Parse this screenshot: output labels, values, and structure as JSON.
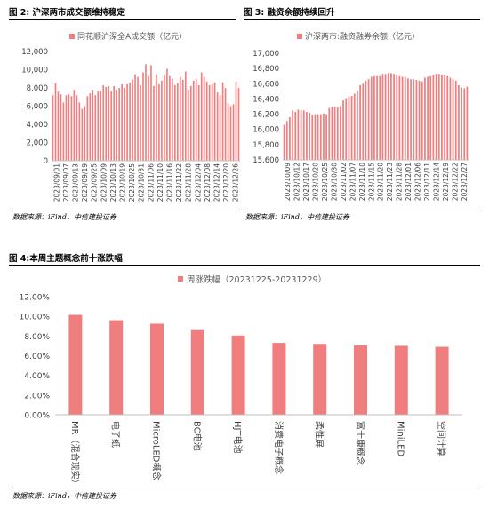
{
  "titles": {
    "fig2": "图 2: 沪深两市成交额维持稳定",
    "fig3": "图 3: 融资余额持续回升",
    "fig4": "图 4:本周主题概念前十涨跌幅"
  },
  "sources": {
    "fig2": "数据来源：iFind，中信建投证券",
    "fig3": "数据来源：iFind，中信建投证券",
    "fig4": "数据来源：iFind，中信建投证券"
  },
  "colors": {
    "bar": "#f07e7e",
    "axis": "#bfbfbf",
    "text": "#595959"
  },
  "chart_data": [
    {
      "type": "bar",
      "title": "",
      "xlabel": "",
      "ylabel": "",
      "legend": "top-center",
      "grid": false,
      "series": [
        {
          "name": "同花顺沪深全A成交额（亿元）",
          "values": [
            7200,
            8500,
            7600,
            7300,
            6400,
            7200,
            7300,
            7100,
            7800,
            7200,
            6400,
            5700,
            6000,
            7100,
            7400,
            7800,
            7200,
            7600,
            7700,
            8300,
            8100,
            8200,
            7600,
            8200,
            7800,
            8000,
            8400,
            8000,
            8400,
            8600,
            8900,
            9500,
            9200,
            8300,
            9700,
            10600,
            9300,
            10500,
            8200,
            9500,
            8400,
            8800,
            9400,
            10100,
            9300,
            9000,
            8300,
            8500,
            9200,
            8900,
            9800,
            7800,
            8200,
            8800,
            9000,
            8300,
            9700,
            9200,
            8700,
            8300,
            8400,
            8600,
            7500,
            7200,
            8600,
            8000,
            6300,
            6000,
            6200,
            8700,
            8000
          ]
        }
      ],
      "x_tick_labels": [
        "2023/09/01",
        "2023/09/07",
        "2023/09/13",
        "2023/09/19",
        "2023/09/25",
        "2023/10/09",
        "2023/10/13",
        "2023/10/19",
        "2023/10/25",
        "2023/10/31",
        "2023/11/06",
        "2023/11/10",
        "2023/11/16",
        "2023/11/22",
        "2023/11/28",
        "2023/12/04",
        "2023/12/08",
        "2023/12/14",
        "2023/12/20",
        "2023/12/26"
      ],
      "y_ticks": [
        "0",
        "2,000",
        "4,000",
        "6,000",
        "8,000",
        "10,000",
        "12,000"
      ],
      "ylim": [
        0,
        12000
      ]
    },
    {
      "type": "bar",
      "title": "",
      "xlabel": "",
      "ylabel": "",
      "legend": "top-center",
      "grid": false,
      "series": [
        {
          "name": "沪深两市:融资融券余额（亿元）",
          "values": [
            16060,
            16110,
            16160,
            16250,
            16230,
            16260,
            16250,
            16250,
            16230,
            16220,
            16190,
            16200,
            16200,
            16200,
            16210,
            16200,
            16280,
            16300,
            16300,
            16290,
            16310,
            16380,
            16410,
            16430,
            16440,
            16470,
            16510,
            16580,
            16600,
            16640,
            16660,
            16690,
            16700,
            16700,
            16700,
            16730,
            16730,
            16740,
            16740,
            16730,
            16720,
            16700,
            16690,
            16690,
            16670,
            16660,
            16660,
            16650,
            16640,
            16630,
            16680,
            16690,
            16700,
            16720,
            16730,
            16730,
            16720,
            16710,
            16700,
            16680,
            16660,
            16640,
            16580,
            16550,
            16540,
            16560
          ]
        }
      ],
      "x_tick_labels": [
        "2023/10/09",
        "2023/10/12",
        "2023/10/17",
        "2023/10/20",
        "2023/10/25",
        "2023/10/30",
        "2023/11/02",
        "2023/11/07",
        "2023/11/10",
        "2023/11/15",
        "2023/11/20",
        "2023/11/23",
        "2023/11/28",
        "2023/12/01",
        "2023/12/06",
        "2023/12/11",
        "2023/12/14",
        "2023/12/19",
        "2023/12/22",
        "2023/12/27"
      ],
      "y_ticks": [
        "15,600",
        "15,800",
        "16,000",
        "16,200",
        "16,400",
        "16,600",
        "16,800",
        "17,000"
      ],
      "ylim": [
        15600,
        17000
      ]
    },
    {
      "type": "bar",
      "title": "",
      "xlabel": "",
      "ylabel": "",
      "legend": "top-center",
      "grid": false,
      "categories": [
        "MR（混合现实）",
        "电子纸",
        "MicroLED概念",
        "BC电池",
        "HJT电池",
        "消费电子概念",
        "柔性屏",
        "富士康概念",
        "MiniLED",
        "空间计算"
      ],
      "series": [
        {
          "name": "周涨跌幅（20231225-20231229）",
          "values": [
            10.15,
            9.6,
            9.25,
            8.6,
            8.05,
            7.3,
            7.2,
            7.05,
            7.0,
            6.9
          ]
        }
      ],
      "y_ticks": [
        "0.00%",
        "2.00%",
        "4.00%",
        "6.00%",
        "8.00%",
        "10.00%",
        "12.00%"
      ],
      "ylim": [
        0,
        12
      ]
    }
  ]
}
